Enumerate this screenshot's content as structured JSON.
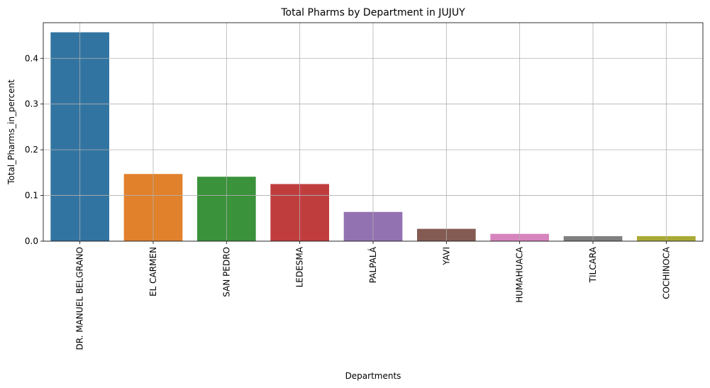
{
  "chart_data": {
    "type": "bar",
    "title": "Total Pharms by Department in JUJUY",
    "xlabel": "Departments",
    "ylabel": "Total_Pharms_in_percent",
    "categories": [
      "DR. MANUEL BELGRANO",
      "EL CARMEN",
      "SAN PEDRO",
      "LEDESMA",
      "PALPALÁ",
      "YAVI",
      "HUMAHUACA",
      "TILCARA",
      "COCHINOCA"
    ],
    "values": [
      0.457,
      0.147,
      0.141,
      0.125,
      0.064,
      0.027,
      0.016,
      0.011,
      0.011
    ],
    "colors": [
      "#3274a1",
      "#e1812c",
      "#3a923a",
      "#c03d3e",
      "#9372b2",
      "#845b53",
      "#d684bd",
      "#7f7f7f",
      "#a9aa35"
    ],
    "ylim": [
      0,
      0.478
    ],
    "yticks": [
      0.0,
      0.1,
      0.2,
      0.3,
      0.4
    ],
    "ytick_labels": [
      "0.0",
      "0.1",
      "0.2",
      "0.3",
      "0.4"
    ],
    "grid": true,
    "legend": "none"
  }
}
